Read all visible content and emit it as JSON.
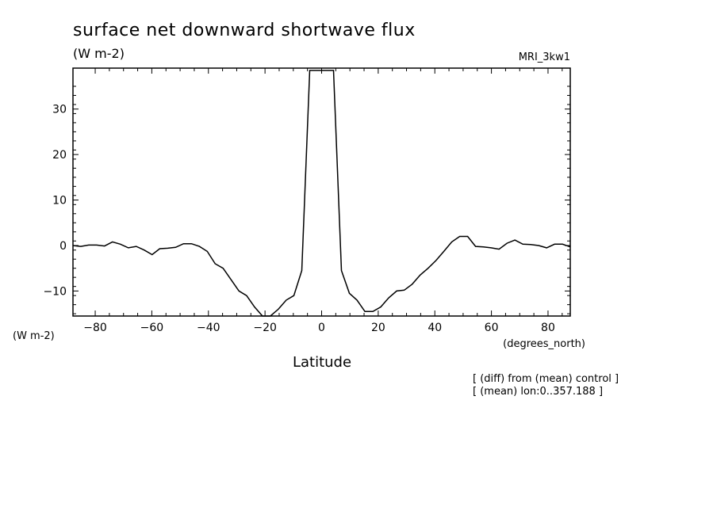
{
  "chart_data": {
    "type": "line",
    "title": "surface net downward shortwave flux",
    "units": "(W m-2)",
    "model": "MRI_3kw1",
    "xlabel": "Latitude",
    "x_units": "(degrees_north)",
    "y_units": "(W m-2)",
    "xlim": [
      -87.86,
      87.86
    ],
    "ylim": [
      -15.5,
      39
    ],
    "xticks": [
      -80,
      -60,
      -40,
      -20,
      0,
      20,
      40,
      60,
      80
    ],
    "yticks": [
      -10,
      0,
      10,
      20,
      30
    ],
    "notes": [
      "[ (diff) from (mean) control ]",
      "[ (mean) lon:0..357.188 ]"
    ],
    "series": [
      {
        "x": [
          -87.86,
          -85.1,
          -82.3,
          -79.5,
          -76.7,
          -73.9,
          -71.1,
          -68.3,
          -65.5,
          -62.7,
          -59.9,
          -57.2,
          -54.4,
          -51.6,
          -48.8,
          -46.0,
          -43.2,
          -40.4,
          -37.6,
          -34.8,
          -32.0,
          -29.2,
          -26.5,
          -23.7,
          -20.9,
          -18.1,
          -15.3,
          -12.5,
          -9.8,
          -7.0,
          -4.2,
          -1.4,
          1.4,
          4.2,
          7.0,
          9.8,
          12.5,
          15.3,
          18.1,
          20.9,
          23.7,
          26.5,
          29.2,
          32.0,
          34.8,
          37.6,
          40.4,
          43.2,
          46.0,
          48.8,
          51.6,
          54.4,
          57.2,
          59.9,
          62.7,
          65.5,
          68.3,
          71.1,
          73.9,
          76.7,
          79.5,
          82.3,
          85.1,
          87.86
        ],
        "values": [
          0,
          -0.2,
          0.1,
          0.1,
          -0.1,
          0.8,
          0.3,
          -0.5,
          -0.2,
          -1.0,
          -2.0,
          -0.7,
          -0.6,
          -0.4,
          0.4,
          0.4,
          -0.2,
          -1.3,
          -4.0,
          -5.0,
          -7.5,
          -10.0,
          -11.0,
          -13.5,
          -15.5,
          -15.5,
          -14.0,
          -12.0,
          -11.0,
          -5.5,
          38.5,
          38.5,
          38.5,
          38.5,
          -5.5,
          -10.5,
          -12.0,
          -14.5,
          -14.5,
          -13.5,
          -11.5,
          -10.0,
          -9.8,
          -8.5,
          -6.5,
          -5.0,
          -3.3,
          -1.3,
          0.8,
          2.0,
          2.0,
          -0.2,
          -0.3,
          -0.5,
          -0.8,
          0.5,
          1.2,
          0.3,
          0.2,
          0,
          -0.5,
          0.3,
          0.3,
          -0.3
        ]
      }
    ],
    "grid": false,
    "legend": "none"
  }
}
